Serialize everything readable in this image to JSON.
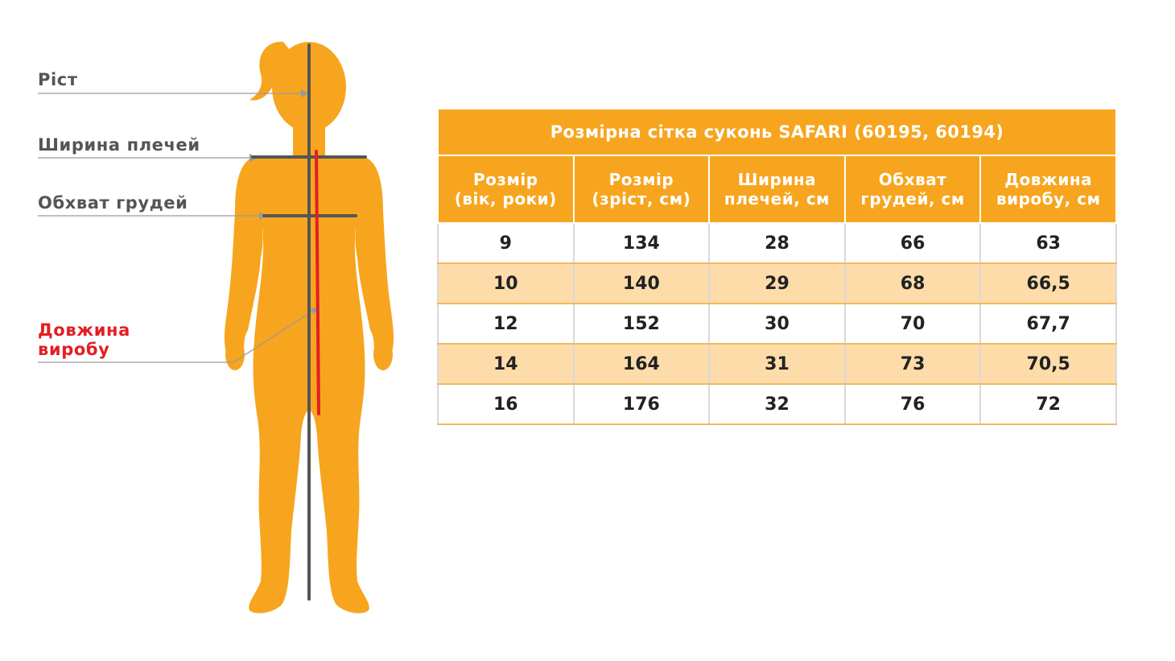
{
  "figure": {
    "labels": {
      "height": "Ріст",
      "shoulder_width": "Ширина плечей",
      "chest_girth": "Обхват грудей",
      "length_line1": "Довжина",
      "length_line2": "виробу"
    },
    "colors": {
      "body": "#f7a51e",
      "measure_line": "#555555",
      "length_line": "#e31e24"
    }
  },
  "table": {
    "title": "Розмірна сітка суконь SAFARI (60195, 60194)",
    "columns": [
      {
        "line1": "Розмір",
        "line2": "(вік, роки)"
      },
      {
        "line1": "Розмір",
        "line2": "(зріст, см)"
      },
      {
        "line1": "Ширина",
        "line2": "плечей, см"
      },
      {
        "line1": "Обхват",
        "line2": "грудей, см"
      },
      {
        "line1": "Довжина",
        "line2": "виробу, см"
      }
    ],
    "rows": [
      [
        "9",
        "134",
        "28",
        "66",
        "63"
      ],
      [
        "10",
        "140",
        "29",
        "68",
        "66,5"
      ],
      [
        "12",
        "152",
        "30",
        "70",
        "67,7"
      ],
      [
        "14",
        "164",
        "31",
        "73",
        "70,5"
      ],
      [
        "16",
        "176",
        "32",
        "76",
        "72"
      ]
    ],
    "colors": {
      "header": "#f7a51e",
      "row_alt": "#fddcaa"
    }
  }
}
